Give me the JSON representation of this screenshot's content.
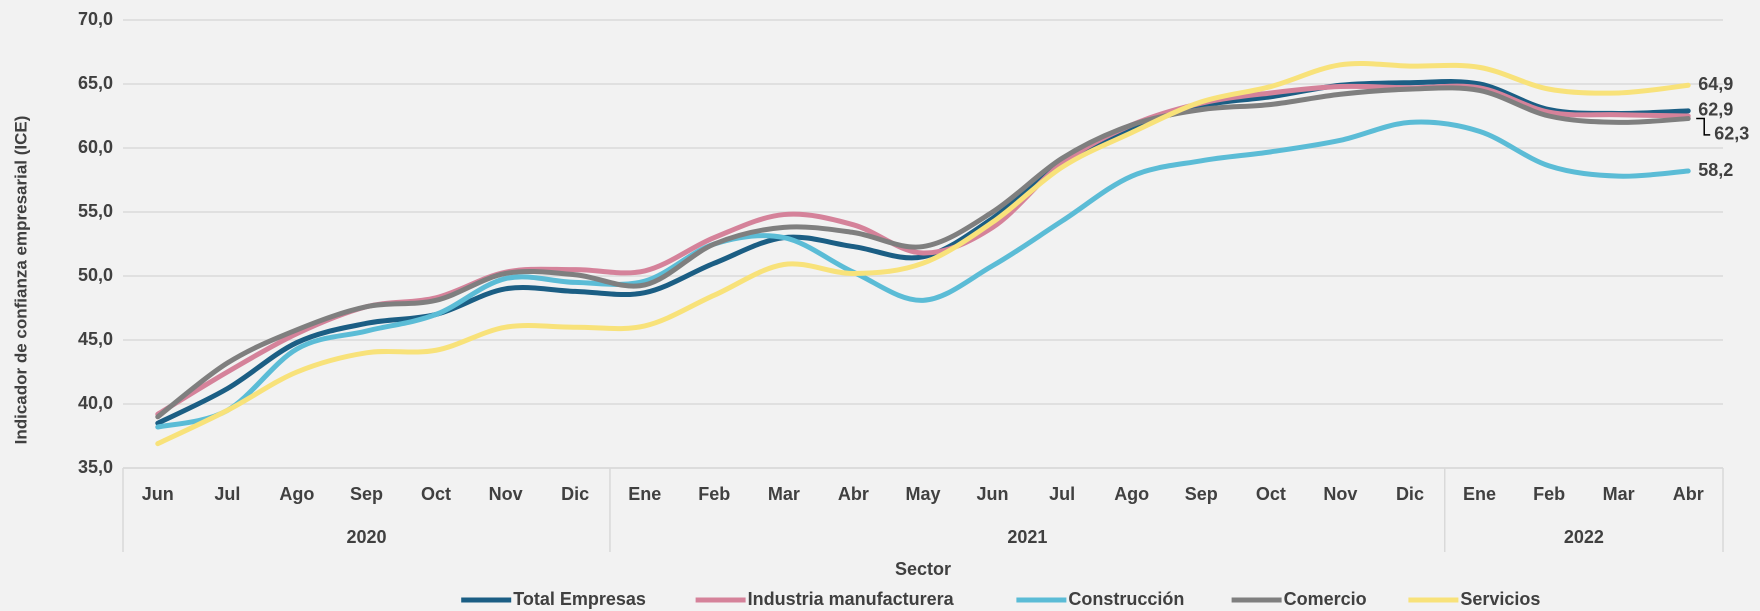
{
  "chart_data": {
    "type": "line",
    "y_label": "Indicador de confianza empresarial (ICE)",
    "x_label": "Sector",
    "categories": [
      "Jun",
      "Jul",
      "Ago",
      "Sep",
      "Oct",
      "Nov",
      "Dic",
      "Ene",
      "Feb",
      "Mar",
      "Abr",
      "May",
      "Jun",
      "Jul",
      "Ago",
      "Sep",
      "Oct",
      "Nov",
      "Dic",
      "Ene",
      "Feb",
      "Mar",
      "Abr"
    ],
    "x_groups": [
      {
        "label": "2020",
        "count": 7
      },
      {
        "label": "2021",
        "count": 12
      },
      {
        "label": "2022",
        "count": 4
      }
    ],
    "ylim": [
      35,
      70
    ],
    "yticks": [
      {
        "value": 35,
        "label": "35,0"
      },
      {
        "value": 40,
        "label": "40,0"
      },
      {
        "value": 45,
        "label": "45,0"
      },
      {
        "value": 50,
        "label": "50,0"
      },
      {
        "value": 55,
        "label": "55,0"
      },
      {
        "value": 60,
        "label": "60,0"
      },
      {
        "value": 65,
        "label": "65,0"
      },
      {
        "value": 70,
        "label": "70,0"
      }
    ],
    "grid": true,
    "legend": "bottom",
    "series": [
      {
        "name": "Total Empresas",
        "color": "#1b5e84",
        "values": [
          38.5,
          41.2,
          44.8,
          46.3,
          47.0,
          49.0,
          48.8,
          48.7,
          51.0,
          53.0,
          52.3,
          51.5,
          54.5,
          58.8,
          61.5,
          63.3,
          64.0,
          64.9,
          65.1,
          65.0,
          63.0,
          62.7,
          62.9
        ],
        "value_labels": [
          null,
          null,
          null,
          null,
          null,
          null,
          null,
          null,
          null,
          null,
          null,
          null,
          null,
          null,
          null,
          null,
          null,
          null,
          null,
          null,
          null,
          null,
          "62,9"
        ]
      },
      {
        "name": "Industria manufacturera",
        "color": "#d5829a",
        "values": [
          39.2,
          42.5,
          45.5,
          47.6,
          48.3,
          50.3,
          50.5,
          50.4,
          53.0,
          54.8,
          54.0,
          51.8,
          53.8,
          58.8,
          61.8,
          63.5,
          64.3,
          64.8,
          64.7,
          64.7,
          62.8,
          62.6,
          62.5
        ]
      },
      {
        "name": "Construcción",
        "color": "#5bbcd6",
        "values": [
          38.2,
          39.5,
          44.3,
          45.7,
          47.0,
          49.8,
          49.5,
          49.6,
          52.5,
          53.0,
          50.3,
          48.1,
          50.8,
          54.3,
          57.8,
          59.0,
          59.7,
          60.6,
          62.0,
          61.3,
          58.6,
          57.8,
          58.2
        ],
        "value_labels": [
          null,
          null,
          null,
          null,
          null,
          null,
          null,
          null,
          null,
          null,
          null,
          null,
          null,
          null,
          null,
          null,
          null,
          null,
          null,
          null,
          null,
          null,
          "58,2"
        ]
      },
      {
        "name": "Comercio",
        "color": "#7f7f7f",
        "values": [
          39.0,
          43.2,
          45.8,
          47.6,
          48.1,
          50.2,
          50.1,
          49.3,
          52.5,
          53.8,
          53.4,
          52.3,
          55.0,
          59.2,
          61.8,
          63.0,
          63.4,
          64.2,
          64.6,
          64.5,
          62.5,
          62.0,
          62.3
        ],
        "value_labels": [
          null,
          null,
          null,
          null,
          null,
          null,
          null,
          null,
          null,
          null,
          null,
          null,
          null,
          null,
          null,
          null,
          null,
          null,
          null,
          null,
          null,
          null,
          "62,3"
        ]
      },
      {
        "name": "Servicios",
        "color": "#f8e27a",
        "values": [
          36.9,
          39.5,
          42.5,
          44.0,
          44.2,
          46.0,
          46.0,
          46.1,
          48.5,
          50.9,
          50.2,
          51.0,
          54.2,
          58.5,
          61.2,
          63.6,
          64.8,
          66.5,
          66.4,
          66.3,
          64.6,
          64.3,
          64.9
        ],
        "value_labels": [
          null,
          null,
          null,
          null,
          null,
          null,
          null,
          null,
          null,
          null,
          null,
          null,
          null,
          null,
          null,
          null,
          null,
          null,
          null,
          null,
          null,
          null,
          "64,9"
        ]
      }
    ]
  }
}
